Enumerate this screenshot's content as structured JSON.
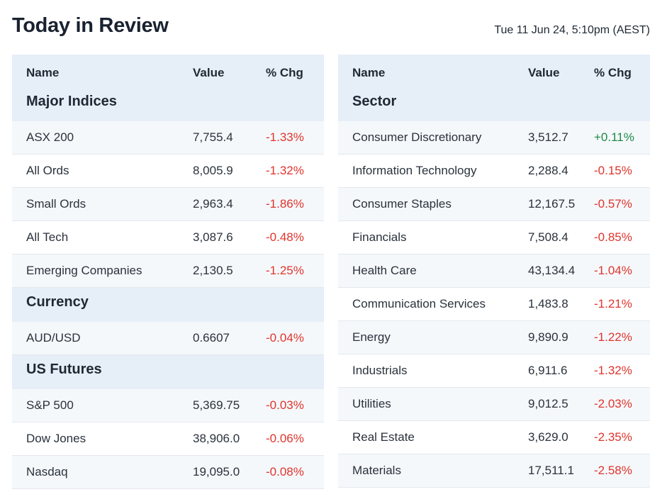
{
  "page": {
    "title": "Today in Review",
    "timestamp": "Tue 11 Jun 24, 5:10pm (AEST)"
  },
  "colors": {
    "header_bg": "#e6eef8",
    "negative": "#e0342c",
    "positive": "#1b8a47"
  },
  "left_table": {
    "columns": {
      "name": "Name",
      "value": "Value",
      "chg": "% Chg"
    },
    "sections": [
      {
        "title": "Major Indices",
        "rows": [
          {
            "name": "ASX 200",
            "value": "7,755.4",
            "chg": "-1.33%",
            "dir": "neg"
          },
          {
            "name": "All Ords",
            "value": "8,005.9",
            "chg": "-1.32%",
            "dir": "neg"
          },
          {
            "name": "Small Ords",
            "value": "2,963.4",
            "chg": "-1.86%",
            "dir": "neg"
          },
          {
            "name": "All Tech",
            "value": "3,087.6",
            "chg": "-0.48%",
            "dir": "neg"
          },
          {
            "name": "Emerging Companies",
            "value": "2,130.5",
            "chg": "-1.25%",
            "dir": "neg"
          }
        ]
      },
      {
        "title": "Currency",
        "rows": [
          {
            "name": "AUD/USD",
            "value": "0.6607",
            "chg": "-0.04%",
            "dir": "neg"
          }
        ]
      },
      {
        "title": "US Futures",
        "rows": [
          {
            "name": "S&P 500",
            "value": "5,369.75",
            "chg": "-0.03%",
            "dir": "neg"
          },
          {
            "name": "Dow Jones",
            "value": "38,906.0",
            "chg": "-0.06%",
            "dir": "neg"
          },
          {
            "name": "Nasdaq",
            "value": "19,095.0",
            "chg": "-0.08%",
            "dir": "neg"
          }
        ]
      }
    ]
  },
  "right_table": {
    "columns": {
      "name": "Name",
      "value": "Value",
      "chg": "% Chg"
    },
    "sections": [
      {
        "title": "Sector",
        "rows": [
          {
            "name": "Consumer Discretionary",
            "value": "3,512.7",
            "chg": "+0.11%",
            "dir": "pos"
          },
          {
            "name": "Information Technology",
            "value": "2,288.4",
            "chg": "-0.15%",
            "dir": "neg"
          },
          {
            "name": "Consumer Staples",
            "value": "12,167.5",
            "chg": "-0.57%",
            "dir": "neg"
          },
          {
            "name": "Financials",
            "value": "7,508.4",
            "chg": "-0.85%",
            "dir": "neg"
          },
          {
            "name": "Health Care",
            "value": "43,134.4",
            "chg": "-1.04%",
            "dir": "neg"
          },
          {
            "name": "Communication Services",
            "value": "1,483.8",
            "chg": "-1.21%",
            "dir": "neg"
          },
          {
            "name": "Energy",
            "value": "9,890.9",
            "chg": "-1.22%",
            "dir": "neg"
          },
          {
            "name": "Industrials",
            "value": "6,911.6",
            "chg": "-1.32%",
            "dir": "neg"
          },
          {
            "name": "Utilities",
            "value": "9,012.5",
            "chg": "-2.03%",
            "dir": "neg"
          },
          {
            "name": "Real Estate",
            "value": "3,629.0",
            "chg": "-2.35%",
            "dir": "neg"
          },
          {
            "name": "Materials",
            "value": "17,511.1",
            "chg": "-2.58%",
            "dir": "neg"
          }
        ]
      }
    ]
  }
}
